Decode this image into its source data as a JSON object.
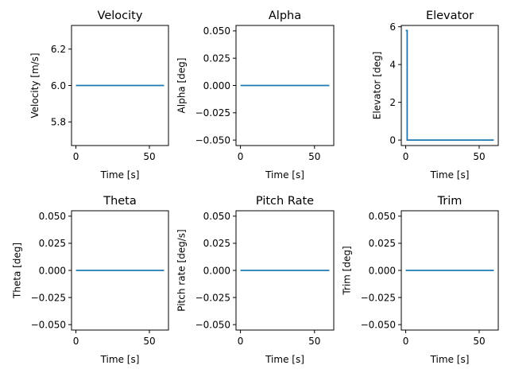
{
  "chart_data": [
    {
      "type": "line",
      "title": "Velocity",
      "xlabel": "Time [s]",
      "ylabel": "Velocity [m/s]",
      "xlim": [
        -3,
        63
      ],
      "ylim": [
        5.67,
        6.33
      ],
      "xticks": [
        0,
        50
      ],
      "xtick_labels": [
        "0",
        "50"
      ],
      "yticks": [
        5.8,
        6.0,
        6.2
      ],
      "ytick_labels": [
        "5.8",
        "6.0",
        "6.2"
      ],
      "x": [
        0,
        60
      ],
      "y": [
        6.0,
        6.0
      ]
    },
    {
      "type": "line",
      "title": "Alpha",
      "xlabel": "Time [s]",
      "ylabel": "Alpha [deg]",
      "xlim": [
        -3,
        63
      ],
      "ylim": [
        -0.055,
        0.055
      ],
      "xticks": [
        0,
        50
      ],
      "xtick_labels": [
        "0",
        "50"
      ],
      "yticks": [
        -0.05,
        -0.025,
        0.0,
        0.025,
        0.05
      ],
      "ytick_labels": [
        "−0.050",
        "−0.025",
        "0.000",
        "0.025",
        "0.050"
      ],
      "x": [
        0,
        60
      ],
      "y": [
        0.0,
        0.0
      ]
    },
    {
      "type": "line",
      "title": "Elevator",
      "xlabel": "Time [s]",
      "ylabel": "Elevator [deg]",
      "xlim": [
        -3,
        63
      ],
      "ylim": [
        -0.29,
        6.07
      ],
      "xticks": [
        0,
        50
      ],
      "xtick_labels": [
        "0",
        "50"
      ],
      "yticks": [
        0,
        2,
        4,
        6
      ],
      "ytick_labels": [
        "0",
        "2",
        "4",
        "6"
      ],
      "x": [
        0,
        1,
        1,
        60
      ],
      "y": [
        5.8,
        5.8,
        0.0,
        0.0
      ]
    },
    {
      "type": "line",
      "title": "Theta",
      "xlabel": "Time [s]",
      "ylabel": "Theta [deg]",
      "xlim": [
        -3,
        63
      ],
      "ylim": [
        -0.055,
        0.055
      ],
      "xticks": [
        0,
        50
      ],
      "xtick_labels": [
        "0",
        "50"
      ],
      "yticks": [
        -0.05,
        -0.025,
        0.0,
        0.025,
        0.05
      ],
      "ytick_labels": [
        "−0.050",
        "−0.025",
        "0.000",
        "0.025",
        "0.050"
      ],
      "x": [
        0,
        60
      ],
      "y": [
        0.0,
        0.0
      ]
    },
    {
      "type": "line",
      "title": "Pitch Rate",
      "xlabel": "Time [s]",
      "ylabel": "Pitch rate [deg/s]",
      "xlim": [
        -3,
        63
      ],
      "ylim": [
        -0.055,
        0.055
      ],
      "xticks": [
        0,
        50
      ],
      "xtick_labels": [
        "0",
        "50"
      ],
      "yticks": [
        -0.05,
        -0.025,
        0.0,
        0.025,
        0.05
      ],
      "ytick_labels": [
        "−0.050",
        "−0.025",
        "0.000",
        "0.025",
        "0.050"
      ],
      "x": [
        0,
        60
      ],
      "y": [
        0.0,
        0.0
      ]
    },
    {
      "type": "line",
      "title": "Trim",
      "xlabel": "Time [s]",
      "ylabel": "Trim [deg]",
      "xlim": [
        -3,
        63
      ],
      "ylim": [
        -0.055,
        0.055
      ],
      "xticks": [
        0,
        50
      ],
      "xtick_labels": [
        "0",
        "50"
      ],
      "yticks": [
        -0.05,
        -0.025,
        0.0,
        0.025,
        0.05
      ],
      "ytick_labels": [
        "−0.050",
        "−0.025",
        "0.000",
        "0.025",
        "0.050"
      ],
      "x": [
        0,
        60
      ],
      "y": [
        0.0,
        0.0
      ]
    }
  ],
  "colors": {
    "line": "#1f77b4",
    "axes": "#000000",
    "background": "#ffffff"
  },
  "grid": false
}
